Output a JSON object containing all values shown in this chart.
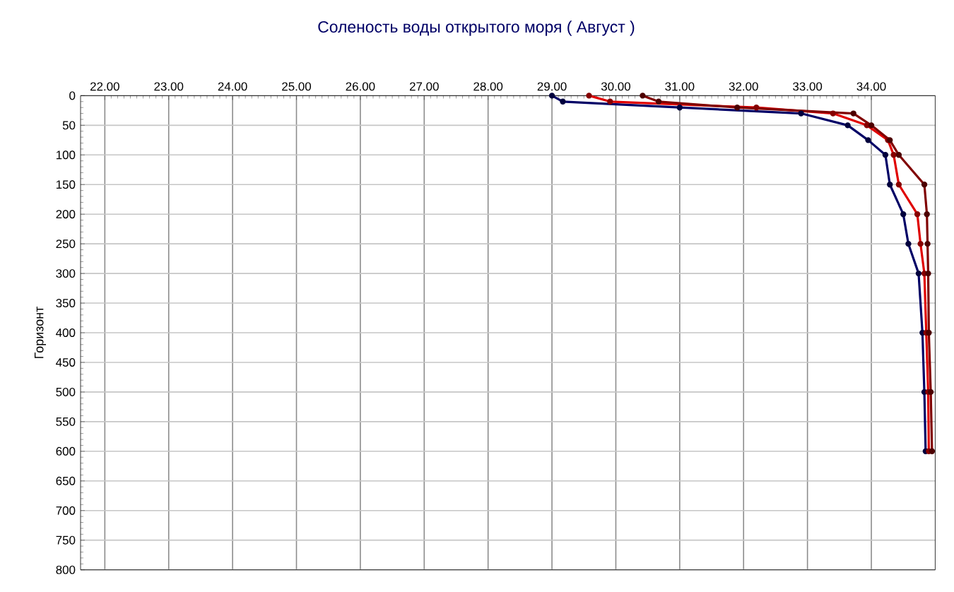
{
  "chart_data": {
    "type": "line",
    "title": "Соленость воды открытого моря    ( Август )",
    "ylabel": "Горизонт",
    "x": [
      0,
      10,
      20,
      30,
      50,
      75,
      100,
      150,
      200,
      250,
      300,
      400,
      500,
      600
    ],
    "series": [
      {
        "color": "#000066",
        "values": [
          29.0,
          29.17,
          31.0,
          32.9,
          33.63,
          33.95,
          34.22,
          34.29,
          34.5,
          34.58,
          34.74,
          34.8,
          34.83,
          34.85
        ]
      },
      {
        "color": "#e00000",
        "values": [
          29.58,
          29.91,
          32.2,
          33.4,
          33.93,
          34.26,
          34.35,
          34.43,
          34.72,
          34.77,
          34.83,
          34.86,
          34.89,
          34.9
        ]
      },
      {
        "color": "#800000",
        "values": [
          30.42,
          30.67,
          31.9,
          33.72,
          34.0,
          34.29,
          34.43,
          34.83,
          34.87,
          34.88,
          34.89,
          34.9,
          34.93,
          34.95
        ]
      }
    ],
    "orientation": "horizontal",
    "xlim": [
      21.62,
      35.0
    ],
    "xticks": [
      {
        "value": 22,
        "label": "22.00"
      },
      {
        "value": 23,
        "label": "23.00"
      },
      {
        "value": 24,
        "label": "24.00"
      },
      {
        "value": 25,
        "label": "25.00"
      },
      {
        "value": 26,
        "label": "26.00"
      },
      {
        "value": 27,
        "label": "27.00"
      },
      {
        "value": 28,
        "label": "28.00"
      },
      {
        "value": 29,
        "label": "29.00"
      },
      {
        "value": 30,
        "label": "30.00"
      },
      {
        "value": 31,
        "label": "31.00"
      },
      {
        "value": 32,
        "label": "32.00"
      },
      {
        "value": 33,
        "label": "33.00"
      },
      {
        "value": 34,
        "label": "34.00"
      }
    ],
    "ylim": [
      800,
      0
    ],
    "yticks": [
      0,
      50,
      100,
      150,
      200,
      250,
      300,
      350,
      400,
      450,
      500,
      550,
      600,
      650,
      700,
      750,
      800
    ],
    "grid": true,
    "marker": "circle",
    "line_style": "solid"
  }
}
